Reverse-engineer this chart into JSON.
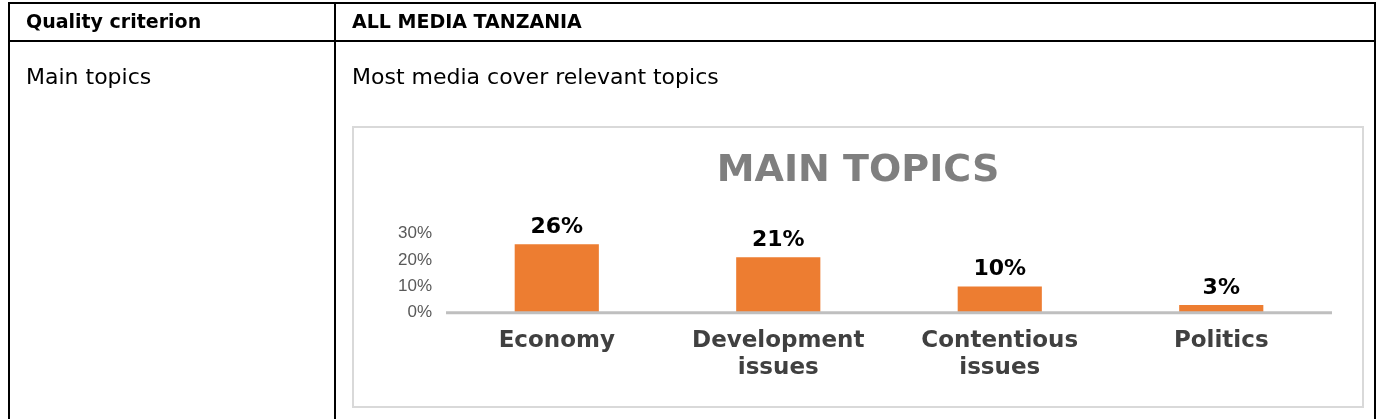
{
  "chart_data": {
    "type": "bar",
    "title": "MAIN TOPICS",
    "categories": [
      "Economy",
      "Development issues",
      "Contentious issues",
      "Politics"
    ],
    "values": [
      26,
      21,
      10,
      3
    ],
    "color": "#ed7d31",
    "value_labels": [
      "26%",
      "21%",
      "10%",
      "3%"
    ],
    "ylim": [
      0,
      30
    ],
    "yticks": [
      {
        "value": 0,
        "label": "0%"
      },
      {
        "value": 10,
        "label": "10%"
      },
      {
        "value": 20,
        "label": "20%"
      },
      {
        "value": 30,
        "label": "30%"
      }
    ],
    "grid": false,
    "legend": false,
    "annotations": [
      "Quality criterion",
      "ALL MEDIA TANZANIA",
      "Main topics",
      "Most media cover relevant topics"
    ]
  }
}
